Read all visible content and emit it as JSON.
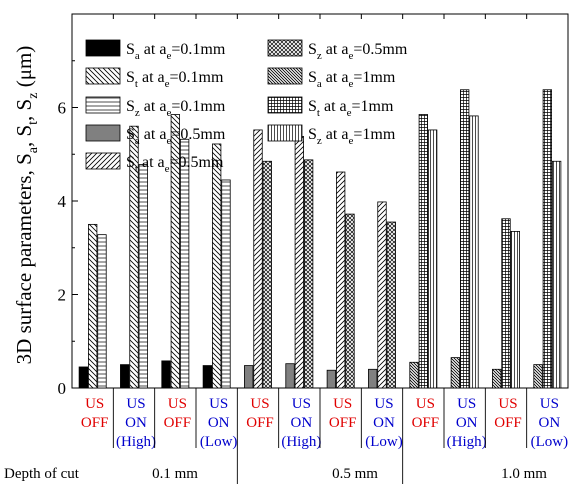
{
  "chart_data": {
    "type": "bar",
    "ylabel_main": "3D surface parameters, S",
    "ylabel_parts": [
      {
        "t": "3D surface parameters, S"
      },
      {
        "t": "a",
        "sub": true
      },
      {
        "t": ", S"
      },
      {
        "t": "t",
        "sub": true
      },
      {
        "t": ", S"
      },
      {
        "t": "z",
        "sub": true
      },
      {
        "t": " (μm)"
      }
    ],
    "ylim": [
      0,
      8
    ],
    "yticks": [
      0,
      2,
      4,
      6
    ],
    "xlabel": "Depth of cut",
    "depth_groups": [
      {
        "label": "0.1 mm"
      },
      {
        "label": "0.5 mm"
      },
      {
        "label": "1.0 mm"
      }
    ],
    "conditions": [
      {
        "lines": [
          {
            "text": "US",
            "color": "#e00000"
          },
          {
            "text": "OFF",
            "color": "#e00000"
          }
        ]
      },
      {
        "lines": [
          {
            "text": "US",
            "color": "#0000cc"
          },
          {
            "text": "ON",
            "color": "#0000cc"
          },
          {
            "text": "(High)",
            "color": "#0000cc"
          }
        ]
      },
      {
        "lines": [
          {
            "text": "US",
            "color": "#e00000"
          },
          {
            "text": "OFF",
            "color": "#e00000"
          }
        ]
      },
      {
        "lines": [
          {
            "text": "US",
            "color": "#0000cc"
          },
          {
            "text": "ON",
            "color": "#0000cc"
          },
          {
            "text": "(Low)",
            "color": "#0000cc"
          }
        ]
      },
      {
        "lines": [
          {
            "text": "US",
            "color": "#e00000"
          },
          {
            "text": "OFF",
            "color": "#e00000"
          }
        ]
      },
      {
        "lines": [
          {
            "text": "US",
            "color": "#0000cc"
          },
          {
            "text": "ON",
            "color": "#0000cc"
          },
          {
            "text": "(High)",
            "color": "#0000cc"
          }
        ]
      },
      {
        "lines": [
          {
            "text": "US",
            "color": "#e00000"
          },
          {
            "text": "OFF",
            "color": "#e00000"
          }
        ]
      },
      {
        "lines": [
          {
            "text": "US",
            "color": "#0000cc"
          },
          {
            "text": "ON",
            "color": "#0000cc"
          },
          {
            "text": "(Low)",
            "color": "#0000cc"
          }
        ]
      },
      {
        "lines": [
          {
            "text": "US",
            "color": "#e00000"
          },
          {
            "text": "OFF",
            "color": "#e00000"
          }
        ]
      },
      {
        "lines": [
          {
            "text": "US",
            "color": "#0000cc"
          },
          {
            "text": "ON",
            "color": "#0000cc"
          },
          {
            "text": "(High)",
            "color": "#0000cc"
          }
        ]
      },
      {
        "lines": [
          {
            "text": "US",
            "color": "#e00000"
          },
          {
            "text": "OFF",
            "color": "#e00000"
          }
        ]
      },
      {
        "lines": [
          {
            "text": "US",
            "color": "#0000cc"
          },
          {
            "text": "ON",
            "color": "#0000cc"
          },
          {
            "text": "(Low)",
            "color": "#0000cc"
          }
        ]
      }
    ],
    "series": [
      {
        "param": "a",
        "depth": "0.1mm",
        "pattern": "solid-black",
        "legend": true
      },
      {
        "param": "t",
        "depth": "0.1mm",
        "pattern": "back-diag"
      },
      {
        "param": "z",
        "depth": "0.1mm",
        "pattern": "horiz"
      },
      {
        "param": "a",
        "depth": "0.5mm",
        "pattern": "solid-gray"
      },
      {
        "param": "t",
        "depth": "0.5mm",
        "pattern": "fwd-diag"
      },
      {
        "param": "z",
        "depth": "0.5mm",
        "pattern": "crosshatch"
      },
      {
        "param": "a",
        "depth": "1mm",
        "pattern": "dense-back-diag"
      },
      {
        "param": "t",
        "depth": "1mm",
        "pattern": "grid"
      },
      {
        "param": "z",
        "depth": "1mm",
        "pattern": "vert"
      }
    ],
    "bars": [
      {
        "condition": 0,
        "values": [
          {
            "s": 0,
            "v": 0.45
          },
          {
            "s": 1,
            "v": 3.5
          },
          {
            "s": 2,
            "v": 3.28
          }
        ]
      },
      {
        "condition": 1,
        "values": [
          {
            "s": 0,
            "v": 0.5
          },
          {
            "s": 1,
            "v": 5.6
          },
          {
            "s": 2,
            "v": 4.78
          }
        ]
      },
      {
        "condition": 2,
        "values": [
          {
            "s": 0,
            "v": 0.58
          },
          {
            "s": 1,
            "v": 5.85
          },
          {
            "s": 2,
            "v": 5.32
          }
        ]
      },
      {
        "condition": 3,
        "values": [
          {
            "s": 0,
            "v": 0.48
          },
          {
            "s": 1,
            "v": 5.22
          },
          {
            "s": 2,
            "v": 4.45
          }
        ]
      },
      {
        "condition": 4,
        "values": [
          {
            "s": 3,
            "v": 0.48
          },
          {
            "s": 4,
            "v": 5.52
          },
          {
            "s": 5,
            "v": 4.85
          }
        ]
      },
      {
        "condition": 5,
        "values": [
          {
            "s": 3,
            "v": 0.52
          },
          {
            "s": 4,
            "v": 5.38
          },
          {
            "s": 5,
            "v": 4.88
          }
        ]
      },
      {
        "condition": 6,
        "values": [
          {
            "s": 3,
            "v": 0.38
          },
          {
            "s": 4,
            "v": 4.62
          },
          {
            "s": 5,
            "v": 3.72
          }
        ]
      },
      {
        "condition": 7,
        "values": [
          {
            "s": 3,
            "v": 0.4
          },
          {
            "s": 4,
            "v": 3.98
          },
          {
            "s": 5,
            "v": 3.55
          }
        ]
      },
      {
        "condition": 8,
        "values": [
          {
            "s": 6,
            "v": 0.55
          },
          {
            "s": 7,
            "v": 5.85
          },
          {
            "s": 8,
            "v": 5.52
          }
        ]
      },
      {
        "condition": 9,
        "values": [
          {
            "s": 6,
            "v": 0.65
          },
          {
            "s": 7,
            "v": 6.38
          },
          {
            "s": 8,
            "v": 5.82
          }
        ]
      },
      {
        "condition": 10,
        "values": [
          {
            "s": 6,
            "v": 0.4
          },
          {
            "s": 7,
            "v": 3.62
          },
          {
            "s": 8,
            "v": 3.35
          }
        ]
      },
      {
        "condition": 11,
        "values": [
          {
            "s": 6,
            "v": 0.5
          },
          {
            "s": 7,
            "v": 6.38
          },
          {
            "s": 8,
            "v": 4.85
          }
        ]
      }
    ]
  }
}
